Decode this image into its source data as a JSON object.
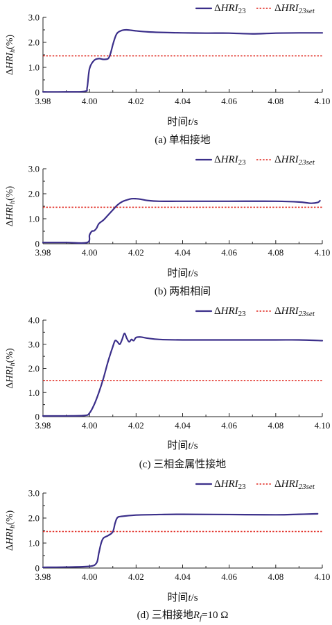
{
  "chart_data": [
    {
      "type": "line",
      "caption": "(a) 单相接地",
      "legend_placement": "top-right",
      "legend": {
        "curve_delta": "Δ",
        "curve_main": "HRI",
        "curve_sub": "23",
        "set_delta": "Δ",
        "set_main": "HRI",
        "set_sub": "23set"
      },
      "xlabel_main": "时间",
      "xlabel_var": "t",
      "xlabel_unit": "/s",
      "ylabel_delta": "Δ",
      "ylabel_main": "HRI",
      "ylabel_sub": "h",
      "ylabel_unit": "(%)",
      "xlim": [
        3.98,
        4.1
      ],
      "ylim": [
        0,
        3.0
      ],
      "xticks": [
        "3.98",
        "4.00",
        "4.02",
        "4.04",
        "4.06",
        "4.08",
        "4.10"
      ],
      "yticks": [
        "0",
        "1.0",
        "2.0",
        "3.0"
      ],
      "grid": false,
      "series": [
        {
          "x": [
            3.98,
            3.99,
            3.998,
            3.999,
            4.0,
            4.002,
            4.004,
            4.006,
            4.008,
            4.009,
            4.01,
            4.011,
            4.012,
            4.014,
            4.016,
            4.02,
            4.025,
            4.03,
            4.04,
            4.05,
            4.06,
            4.07,
            4.08,
            4.09,
            4.1
          ],
          "y": [
            0.02,
            0.02,
            0.04,
            0.2,
            0.95,
            1.28,
            1.35,
            1.32,
            1.35,
            1.55,
            1.9,
            2.2,
            2.38,
            2.48,
            2.5,
            2.46,
            2.42,
            2.4,
            2.38,
            2.37,
            2.37,
            2.34,
            2.37,
            2.38,
            2.38
          ]
        },
        {
          "x": [
            3.98,
            4.1
          ],
          "y": [
            1.46,
            1.46
          ]
        }
      ]
    },
    {
      "type": "line",
      "caption": "(b) 两相相间",
      "legend_placement": "top-right",
      "legend": {
        "curve_delta": "Δ",
        "curve_main": "HRI",
        "curve_sub": "23",
        "set_delta": "Δ",
        "set_main": "HRI",
        "set_sub": "23set"
      },
      "xlabel_main": "时间",
      "xlabel_var": "t",
      "xlabel_unit": "/s",
      "ylabel_delta": "Δ",
      "ylabel_main": "HRI",
      "ylabel_sub": "h",
      "ylabel_unit": "(%)",
      "xlim": [
        3.98,
        4.1
      ],
      "ylim": [
        0,
        3.0
      ],
      "xticks": [
        "3.98",
        "4.00",
        "4.02",
        "4.04",
        "4.06",
        "4.08",
        "4.10"
      ],
      "yticks": [
        "0",
        "1.0",
        "2.0",
        "3.0"
      ],
      "grid": false,
      "series": [
        {
          "x": [
            3.98,
            3.99,
            3.999,
            4.0,
            4.001,
            4.002,
            4.003,
            4.004,
            4.006,
            4.008,
            4.01,
            4.012,
            4.014,
            4.016,
            4.018,
            4.02,
            4.022,
            4.025,
            4.03,
            4.04,
            4.06,
            4.08,
            4.09,
            4.095,
            4.098,
            4.099
          ],
          "y": [
            0.05,
            0.05,
            0.05,
            0.35,
            0.5,
            0.52,
            0.62,
            0.8,
            0.95,
            1.15,
            1.35,
            1.55,
            1.68,
            1.75,
            1.8,
            1.8,
            1.78,
            1.73,
            1.7,
            1.7,
            1.7,
            1.7,
            1.67,
            1.62,
            1.65,
            1.72
          ]
        },
        {
          "x": [
            3.98,
            4.1
          ],
          "y": [
            1.46,
            1.46
          ]
        }
      ]
    },
    {
      "type": "line",
      "caption": "(c) 三相金属性接地",
      "legend_placement": "top-right",
      "legend": {
        "curve_delta": "Δ",
        "curve_main": "HRI",
        "curve_sub": "23",
        "set_delta": "Δ",
        "set_main": "HRI",
        "set_sub": "23set"
      },
      "xlabel_main": "时间",
      "xlabel_var": "t",
      "xlabel_unit": "/s",
      "ylabel_delta": "Δ",
      "ylabel_main": "HRI",
      "ylabel_sub": "h",
      "ylabel_unit": "(%)",
      "xlim": [
        3.98,
        4.1
      ],
      "ylim": [
        0,
        4.0
      ],
      "xticks": [
        "3.98",
        "4.00",
        "4.02",
        "4.04",
        "4.06",
        "4.08",
        "4.10"
      ],
      "yticks": [
        "0",
        "1.0",
        "2.0",
        "3.0",
        "4.0"
      ],
      "grid": false,
      "series": [
        {
          "x": [
            3.98,
            3.99,
            3.998,
            4.0,
            4.002,
            4.004,
            4.006,
            4.008,
            4.01,
            4.011,
            4.012,
            4.013,
            4.014,
            4.015,
            4.016,
            4.017,
            4.018,
            4.019,
            4.02,
            4.022,
            4.025,
            4.03,
            4.04,
            4.06,
            4.08,
            4.09,
            4.1
          ],
          "y": [
            0.03,
            0.03,
            0.05,
            0.15,
            0.5,
            1.0,
            1.6,
            2.3,
            2.9,
            3.15,
            3.1,
            3.0,
            3.2,
            3.45,
            3.25,
            3.1,
            3.2,
            3.15,
            3.28,
            3.3,
            3.25,
            3.2,
            3.18,
            3.18,
            3.18,
            3.18,
            3.15
          ]
        },
        {
          "x": [
            3.98,
            4.1
          ],
          "y": [
            1.5,
            1.5
          ]
        }
      ]
    },
    {
      "type": "line",
      "caption_prefix": "(d) 三相接地",
      "caption_var": "R",
      "caption_sub": "f",
      "caption_suffix": "=10 Ω",
      "legend_placement": "top-right",
      "legend": {
        "curve_delta": "Δ",
        "curve_main": "HRI",
        "curve_sub": "23",
        "set_delta": "Δ",
        "set_main": "HRI",
        "set_sub": "23set"
      },
      "xlabel_main": "时间",
      "xlabel_var": "t",
      "xlabel_unit": "/s",
      "ylabel_delta": "Δ",
      "ylabel_main": "HRI",
      "ylabel_sub": "h",
      "ylabel_unit": "(%)",
      "xlim": [
        3.98,
        4.1
      ],
      "ylim": [
        0,
        3.0
      ],
      "xticks": [
        "3.98",
        "4.00",
        "4.02",
        "4.04",
        "4.06",
        "4.08",
        "4.10"
      ],
      "yticks": [
        "0",
        "1.0",
        "2.0",
        "3.0"
      ],
      "grid": false,
      "series": [
        {
          "x": [
            3.98,
            3.99,
            4.0,
            4.003,
            4.004,
            4.005,
            4.006,
            4.008,
            4.01,
            4.011,
            4.012,
            4.014,
            4.02,
            4.03,
            4.04,
            4.06,
            4.08,
            4.09,
            4.098
          ],
          "y": [
            0.03,
            0.04,
            0.07,
            0.2,
            0.6,
            1.0,
            1.2,
            1.3,
            1.45,
            1.8,
            2.02,
            2.07,
            2.12,
            2.14,
            2.15,
            2.14,
            2.13,
            2.15,
            2.17
          ]
        },
        {
          "x": [
            3.98,
            4.1
          ],
          "y": [
            1.46,
            1.46
          ]
        }
      ]
    }
  ]
}
